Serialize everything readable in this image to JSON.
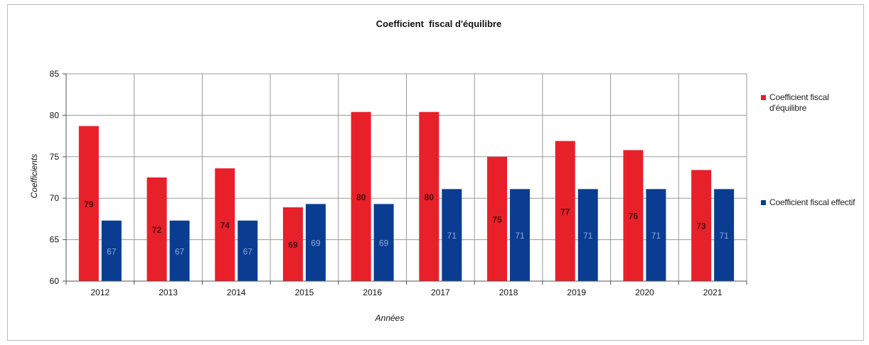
{
  "chart_data": {
    "type": "bar",
    "title": "Coefficient  fiscal d'équilibre",
    "xlabel": "Années",
    "ylabel": "Coefficients",
    "categories": [
      "2012",
      "2013",
      "2014",
      "2015",
      "2016",
      "2017",
      "2018",
      "2019",
      "2020",
      "2021"
    ],
    "ylim": [
      60,
      85
    ],
    "yticks": [
      "60",
      "65",
      "70",
      "75",
      "80",
      "85"
    ],
    "grid": true,
    "legend_position": "right",
    "series": [
      {
        "name": "Coefficient fiscal d'équilibre",
        "color": "#e8202a",
        "values": [
          78.7,
          72.5,
          73.6,
          68.9,
          80.4,
          80.4,
          75.0,
          76.9,
          75.8,
          73.4
        ],
        "data_labels": [
          "79",
          "72",
          "74",
          "69",
          "80",
          "80",
          "75",
          "77",
          "76",
          "73"
        ]
      },
      {
        "name": "Coefficient fiscal effectif",
        "color": "#0a3d91",
        "values": [
          67.3,
          67.3,
          67.3,
          69.3,
          69.3,
          71.1,
          71.1,
          71.1,
          71.1,
          71.1
        ],
        "data_labels": [
          "67",
          "67",
          "67",
          "69",
          "69",
          "71",
          "71",
          "71",
          "71",
          "71"
        ]
      }
    ]
  }
}
